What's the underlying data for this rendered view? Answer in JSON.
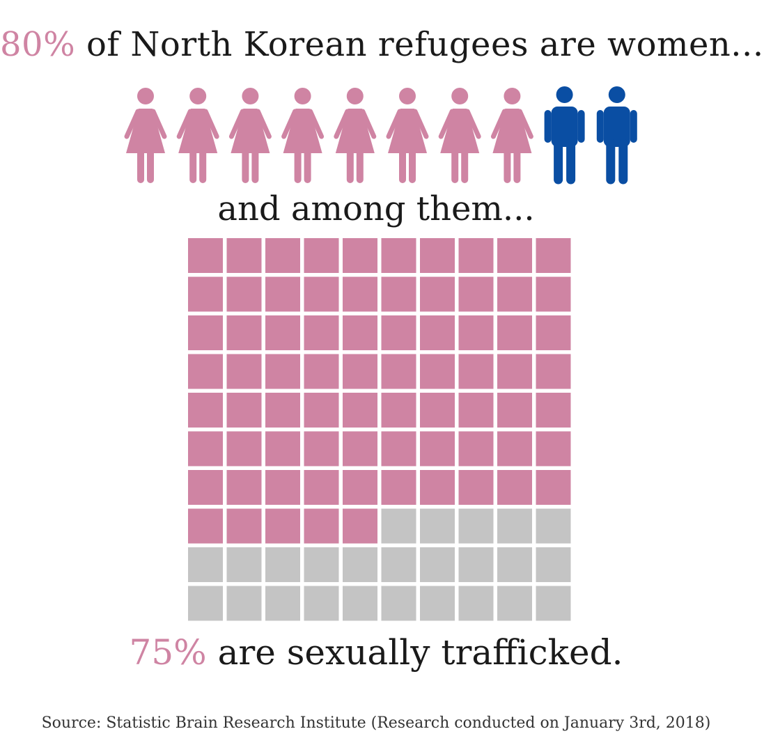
{
  "headline": {
    "percent": "80%",
    "rest": "of North Korean refugees are women..."
  },
  "subline": "and among them...",
  "result": {
    "percent": "75%",
    "rest": "are sexually trafficked."
  },
  "source": "Source: Statistic Brain Research Institute (Research conducted on January 3rd, 2018)",
  "colors": {
    "accent_pink": "#cf84a3",
    "male_blue": "#0a4ea3",
    "empty_gray": "#c4c4c4",
    "text": "#1a1a1a"
  },
  "chart_data": [
    {
      "type": "pictogram",
      "total_icons": 10,
      "categories": [
        "women",
        "men"
      ],
      "values": [
        8,
        2
      ],
      "icons": [
        "female-person-icon",
        "male-person-icon"
      ],
      "percent_women": 80
    },
    {
      "type": "waffle",
      "rows": 10,
      "cols": 10,
      "total": 100,
      "filled": 75,
      "percent": 75
    }
  ]
}
